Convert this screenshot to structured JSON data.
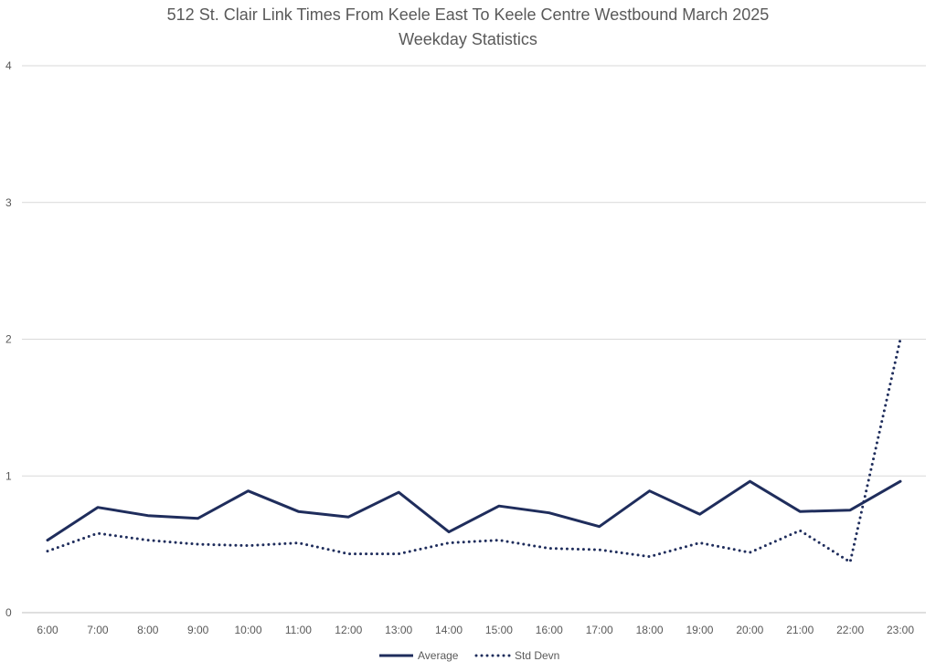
{
  "chart_data": {
    "type": "line",
    "title": "512 St. Clair Link Times From Keele East To Keele Centre Westbound March 2025",
    "subtitle": "Weekday Statistics",
    "xlabel": "",
    "ylabel": "",
    "ylim": [
      0,
      4
    ],
    "yticks": [
      "0",
      "1",
      "2",
      "3",
      "4"
    ],
    "grid": true,
    "legend_position": "bottom",
    "categories": [
      "6:00",
      "7:00",
      "8:00",
      "9:00",
      "10:00",
      "11:00",
      "12:00",
      "13:00",
      "14:00",
      "15:00",
      "16:00",
      "17:00",
      "18:00",
      "19:00",
      "20:00",
      "21:00",
      "22:00",
      "23:00"
    ],
    "series": [
      {
        "name": "Average",
        "style": "solid",
        "color": "#1f2d5c",
        "values": [
          0.53,
          0.77,
          0.71,
          0.69,
          0.89,
          0.74,
          0.7,
          0.88,
          0.59,
          0.78,
          0.73,
          0.63,
          0.89,
          0.72,
          0.96,
          0.74,
          0.75,
          0.96
        ]
      },
      {
        "name": "Std Devn",
        "style": "dotted",
        "color": "#1f2d5c",
        "values": [
          0.45,
          0.58,
          0.53,
          0.5,
          0.49,
          0.51,
          0.43,
          0.43,
          0.51,
          0.53,
          0.47,
          0.46,
          0.41,
          0.51,
          0.44,
          0.6,
          0.37,
          2.0
        ]
      }
    ]
  }
}
